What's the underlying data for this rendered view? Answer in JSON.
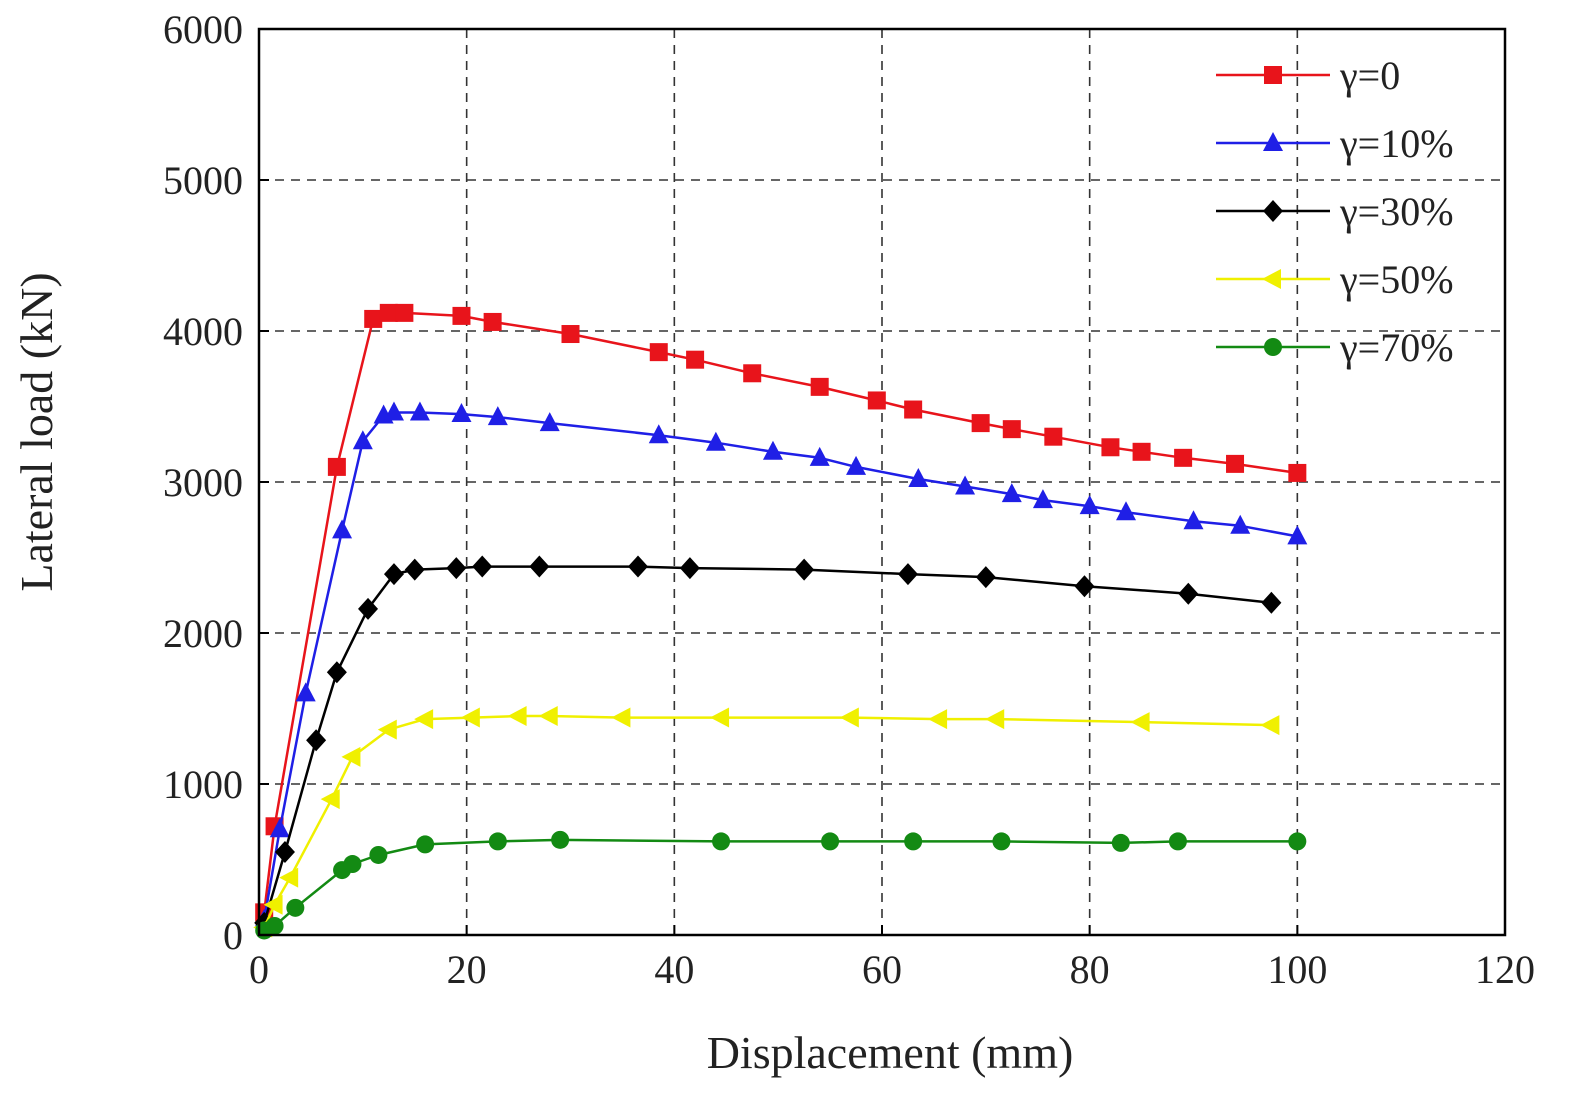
{
  "chart_data": {
    "type": "line",
    "title": "",
    "xlabel": "Displacement (mm)",
    "ylabel": "Lateral load (kN)",
    "xlim": [
      0,
      120
    ],
    "ylim": [
      0,
      6000
    ],
    "x_ticks": [
      0,
      20,
      40,
      60,
      80,
      100,
      120
    ],
    "y_ticks": [
      0,
      1000,
      2000,
      3000,
      4000,
      5000,
      6000
    ],
    "grid": true,
    "legend_position": "top-right",
    "series": [
      {
        "name": "γ=0",
        "color": "#e8141b",
        "marker": "square",
        "x": [
          0.5,
          1.5,
          7.5,
          11,
          12.5,
          14,
          19.5,
          22.5,
          30,
          38.5,
          42,
          47.5,
          54,
          59.5,
          63,
          69.5,
          72.5,
          76.5,
          82,
          85,
          89,
          94,
          100
        ],
        "y": [
          150,
          720,
          3100,
          4080,
          4120,
          4120,
          4100,
          4060,
          3980,
          3860,
          3810,
          3720,
          3630,
          3540,
          3480,
          3390,
          3350,
          3300,
          3230,
          3200,
          3160,
          3120,
          3060
        ]
      },
      {
        "name": "γ=10%",
        "color": "#1f1fe6",
        "marker": "triangle-up",
        "x": [
          0.5,
          2,
          4.5,
          8,
          10,
          12,
          13,
          15.5,
          19.5,
          23,
          28,
          38.5,
          44,
          49.5,
          54,
          57.5,
          63.5,
          68,
          72.5,
          75.5,
          80,
          83.5,
          90,
          94.5,
          100
        ],
        "y": [
          100,
          700,
          1600,
          2680,
          3270,
          3440,
          3460,
          3460,
          3450,
          3430,
          3390,
          3310,
          3260,
          3200,
          3160,
          3100,
          3020,
          2970,
          2920,
          2880,
          2840,
          2800,
          2740,
          2710,
          2640
        ]
      },
      {
        "name": "γ=30%",
        "color": "#000000",
        "marker": "diamond",
        "x": [
          0.5,
          2.5,
          5.5,
          7.5,
          10.5,
          13,
          15,
          19,
          21.5,
          27,
          36.5,
          41.5,
          52.5,
          62.5,
          70,
          79.5,
          89.5,
          97.5
        ],
        "y": [
          80,
          550,
          1290,
          1740,
          2160,
          2390,
          2420,
          2430,
          2440,
          2440,
          2440,
          2430,
          2420,
          2390,
          2370,
          2310,
          2260,
          2200
        ]
      },
      {
        "name": "γ=50%",
        "color": "#f0f000",
        "marker": "triangle-left",
        "x": [
          0.5,
          1.5,
          3,
          7,
          9,
          12.5,
          16,
          20.5,
          25,
          28,
          35,
          44.5,
          57,
          65.5,
          71,
          85,
          97.5
        ],
        "y": [
          50,
          200,
          380,
          900,
          1180,
          1360,
          1430,
          1440,
          1450,
          1450,
          1440,
          1440,
          1440,
          1430,
          1430,
          1410,
          1390
        ]
      },
      {
        "name": "γ=70%",
        "color": "#138a13",
        "marker": "circle",
        "x": [
          0.5,
          1.5,
          3.5,
          8,
          9,
          11.5,
          16,
          23,
          29,
          44.5,
          55,
          63,
          71.5,
          83,
          88.5,
          100
        ],
        "y": [
          30,
          60,
          180,
          430,
          470,
          530,
          600,
          620,
          630,
          620,
          620,
          620,
          620,
          610,
          620,
          620
        ]
      }
    ]
  }
}
